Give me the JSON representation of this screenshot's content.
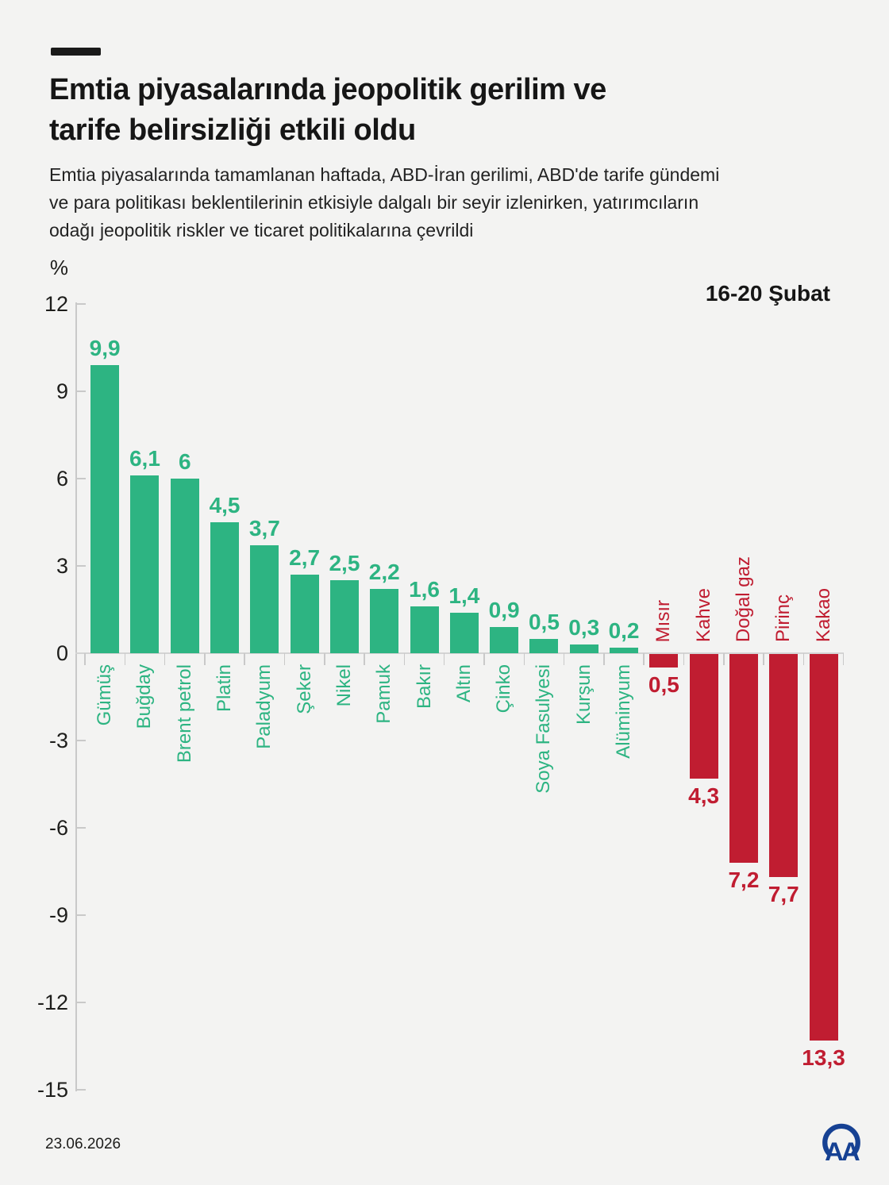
{
  "page": {
    "background": "#f3f3f2"
  },
  "header": {
    "title_line1": "Emtia piyasalarında jeopolitik gerilim ve",
    "title_line2": "tarife belirsizliği etkili oldu",
    "subtitle_lines": [
      "Emtia piyasalarında tamamlanan haftada, ABD-İran gerilimi, ABD'de tarife gündemi",
      "ve para politikası beklentilerinin etkisiyle dalgalı bir seyir izlenirken, yatırımcıların",
      "odağı jeopolitik riskler ve ticaret politikalarına çevrildi"
    ]
  },
  "chart_data": {
    "type": "bar",
    "title": "Emtia piyasalarında jeopolitik gerilim ve tarife belirsizliği etkili oldu",
    "subtitle": "Emtia piyasalarında tamamlanan haftada, ABD-İran gerilimi, ABD'de tarife gündemi ve para politikası beklentilerinin etkisiyle dalgalı bir seyir izlenirken, yatırımcıların odağı jeopolitik riskler ve ticaret politikalarına çevrildi",
    "unit_label": "%",
    "period_label": "16-20 Şubat",
    "categories": [
      "Gümüş",
      "Buğday",
      "Brent petrol",
      "Platin",
      "Paladyum",
      "Şeker",
      "Nikel",
      "Pamuk",
      "Bakır",
      "Altın",
      "Çinko",
      "Soya Fasulyesi",
      "Kurşun",
      "Alüminyum",
      "Mısır",
      "Kahve",
      "Doğal gaz",
      "Pirinç",
      "Kakao"
    ],
    "values": [
      9.9,
      6.1,
      6,
      4.5,
      3.7,
      2.7,
      2.5,
      2.2,
      1.6,
      1.4,
      0.9,
      0.5,
      0.3,
      0.2,
      -0.5,
      -4.3,
      -7.2,
      -7.7,
      -13.3
    ],
    "value_labels": [
      "9,9",
      "6,1",
      "6",
      "4,5",
      "3,7",
      "2,7",
      "2,5",
      "2,2",
      "1,6",
      "1,4",
      "0,9",
      "0,5",
      "0,3",
      "0,2",
      "0,5",
      "4,3",
      "7,2",
      "7,7",
      "13,3"
    ],
    "ylim": [
      -15,
      12
    ],
    "yticks": [
      12,
      9,
      6,
      3,
      0,
      -3,
      -6,
      -9,
      -12,
      -15
    ],
    "grid": false,
    "legend": "none",
    "bar_label_rotation": 90,
    "positive_color": "#2db482",
    "negative_color": "#c01d31"
  },
  "footer": {
    "date": "23.06.2026",
    "logo_text": "AA",
    "logo_color": "#164193"
  }
}
